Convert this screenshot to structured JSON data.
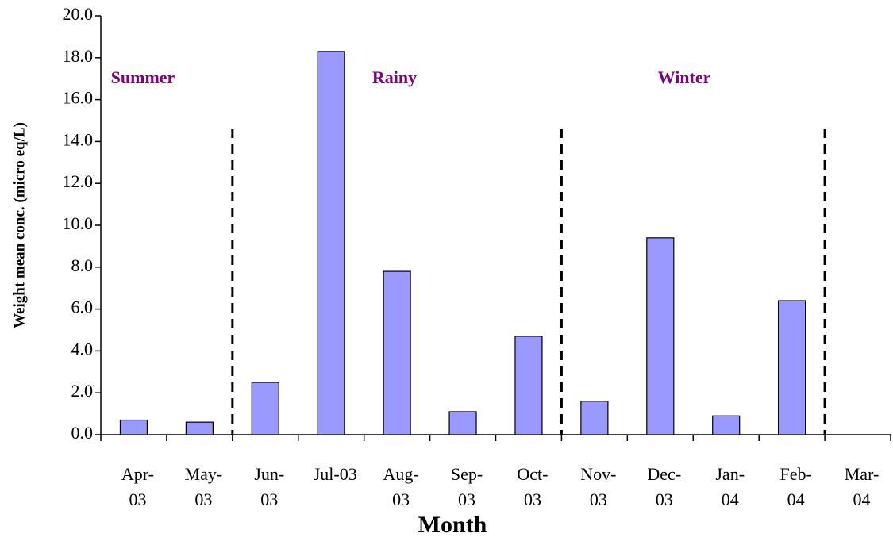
{
  "chart_data": {
    "type": "bar",
    "x_label": "Month",
    "y_label": "Weight mean conc. (micro eq/L)",
    "categories": [
      "Apr-03",
      "May-03",
      "Jun-03",
      "Jul-03",
      "Aug-03",
      "Sep-03",
      "Oct-03",
      "Nov-03",
      "Dec-03",
      "Jan-04",
      "Feb-04",
      "Mar-04"
    ],
    "values": [
      0.7,
      0.6,
      2.5,
      18.3,
      7.8,
      1.1,
      4.7,
      1.6,
      9.4,
      0.9,
      6.4,
      null
    ],
    "color": "#9999ff",
    "annotations": [
      "Summer",
      "Rainy",
      "Winter"
    ],
    "annotation_color": "#800080",
    "ylim": [
      0,
      20
    ],
    "yticks": [
      {
        "value": 0,
        "label": "0.0"
      },
      {
        "value": 2,
        "label": "2.0"
      },
      {
        "value": 4,
        "label": "4.0"
      },
      {
        "value": 6,
        "label": "6.0"
      },
      {
        "value": 8,
        "label": "8.0"
      },
      {
        "value": 10,
        "label": "10.0"
      },
      {
        "value": 12,
        "label": "12.0"
      },
      {
        "value": 14,
        "label": "14.0"
      },
      {
        "value": 16,
        "label": "16.0"
      },
      {
        "value": 18,
        "label": "18.0"
      },
      {
        "value": 20,
        "label": "20.0"
      }
    ]
  }
}
